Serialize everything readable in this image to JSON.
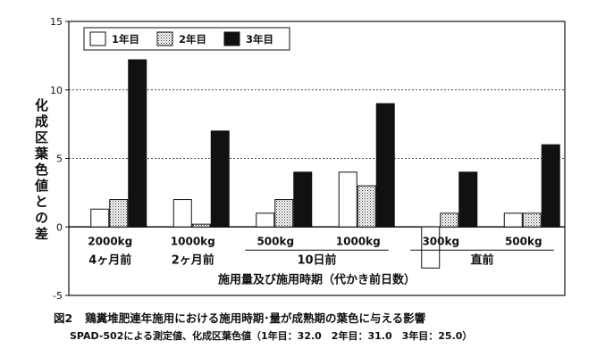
{
  "chart_data": {
    "type": "bar",
    "ylabel": "化成区葉色値との差",
    "xlabel": "施用量及び施用時期（代かき前日数）",
    "ylim": [
      -5,
      15
    ],
    "yticks": [
      -5,
      0,
      5,
      10,
      15
    ],
    "grid": "dashed horizontal at 5 and 10",
    "legend_position": "top-left",
    "categories": [
      "2000kg",
      "1000kg",
      "500kg",
      "1000kg",
      "300kg",
      "500kg"
    ],
    "timing_groups": [
      {
        "label": "4ヶ月前",
        "members": [
          "2000kg"
        ]
      },
      {
        "label": "2ヶ月前",
        "members": [
          "1000kg"
        ]
      },
      {
        "label": "10日前",
        "members": [
          "500kg",
          "1000kg"
        ]
      },
      {
        "label": "直前",
        "members": [
          "300kg",
          "500kg"
        ]
      }
    ],
    "series": [
      {
        "name": "1年目",
        "values": [
          1.3,
          2.0,
          1.0,
          4.0,
          -3.0,
          1.0
        ],
        "fill": "#ffffff"
      },
      {
        "name": "2年目",
        "values": [
          2.0,
          0.2,
          2.0,
          3.0,
          1.0,
          1.0
        ],
        "fill": "dots"
      },
      {
        "name": "3年目",
        "values": [
          12.2,
          7.0,
          4.0,
          9.0,
          4.0,
          6.0
        ],
        "fill": "#111111"
      }
    ]
  },
  "caption": {
    "figure_label": "図2",
    "title": "鶏糞堆肥連年施用における施用時期･量が成熟期の葉色に与える影響",
    "note": "SPAD-502による測定値、化成区葉色値（1年目：32.0　2年目：31.0　3年目：25.0）"
  }
}
